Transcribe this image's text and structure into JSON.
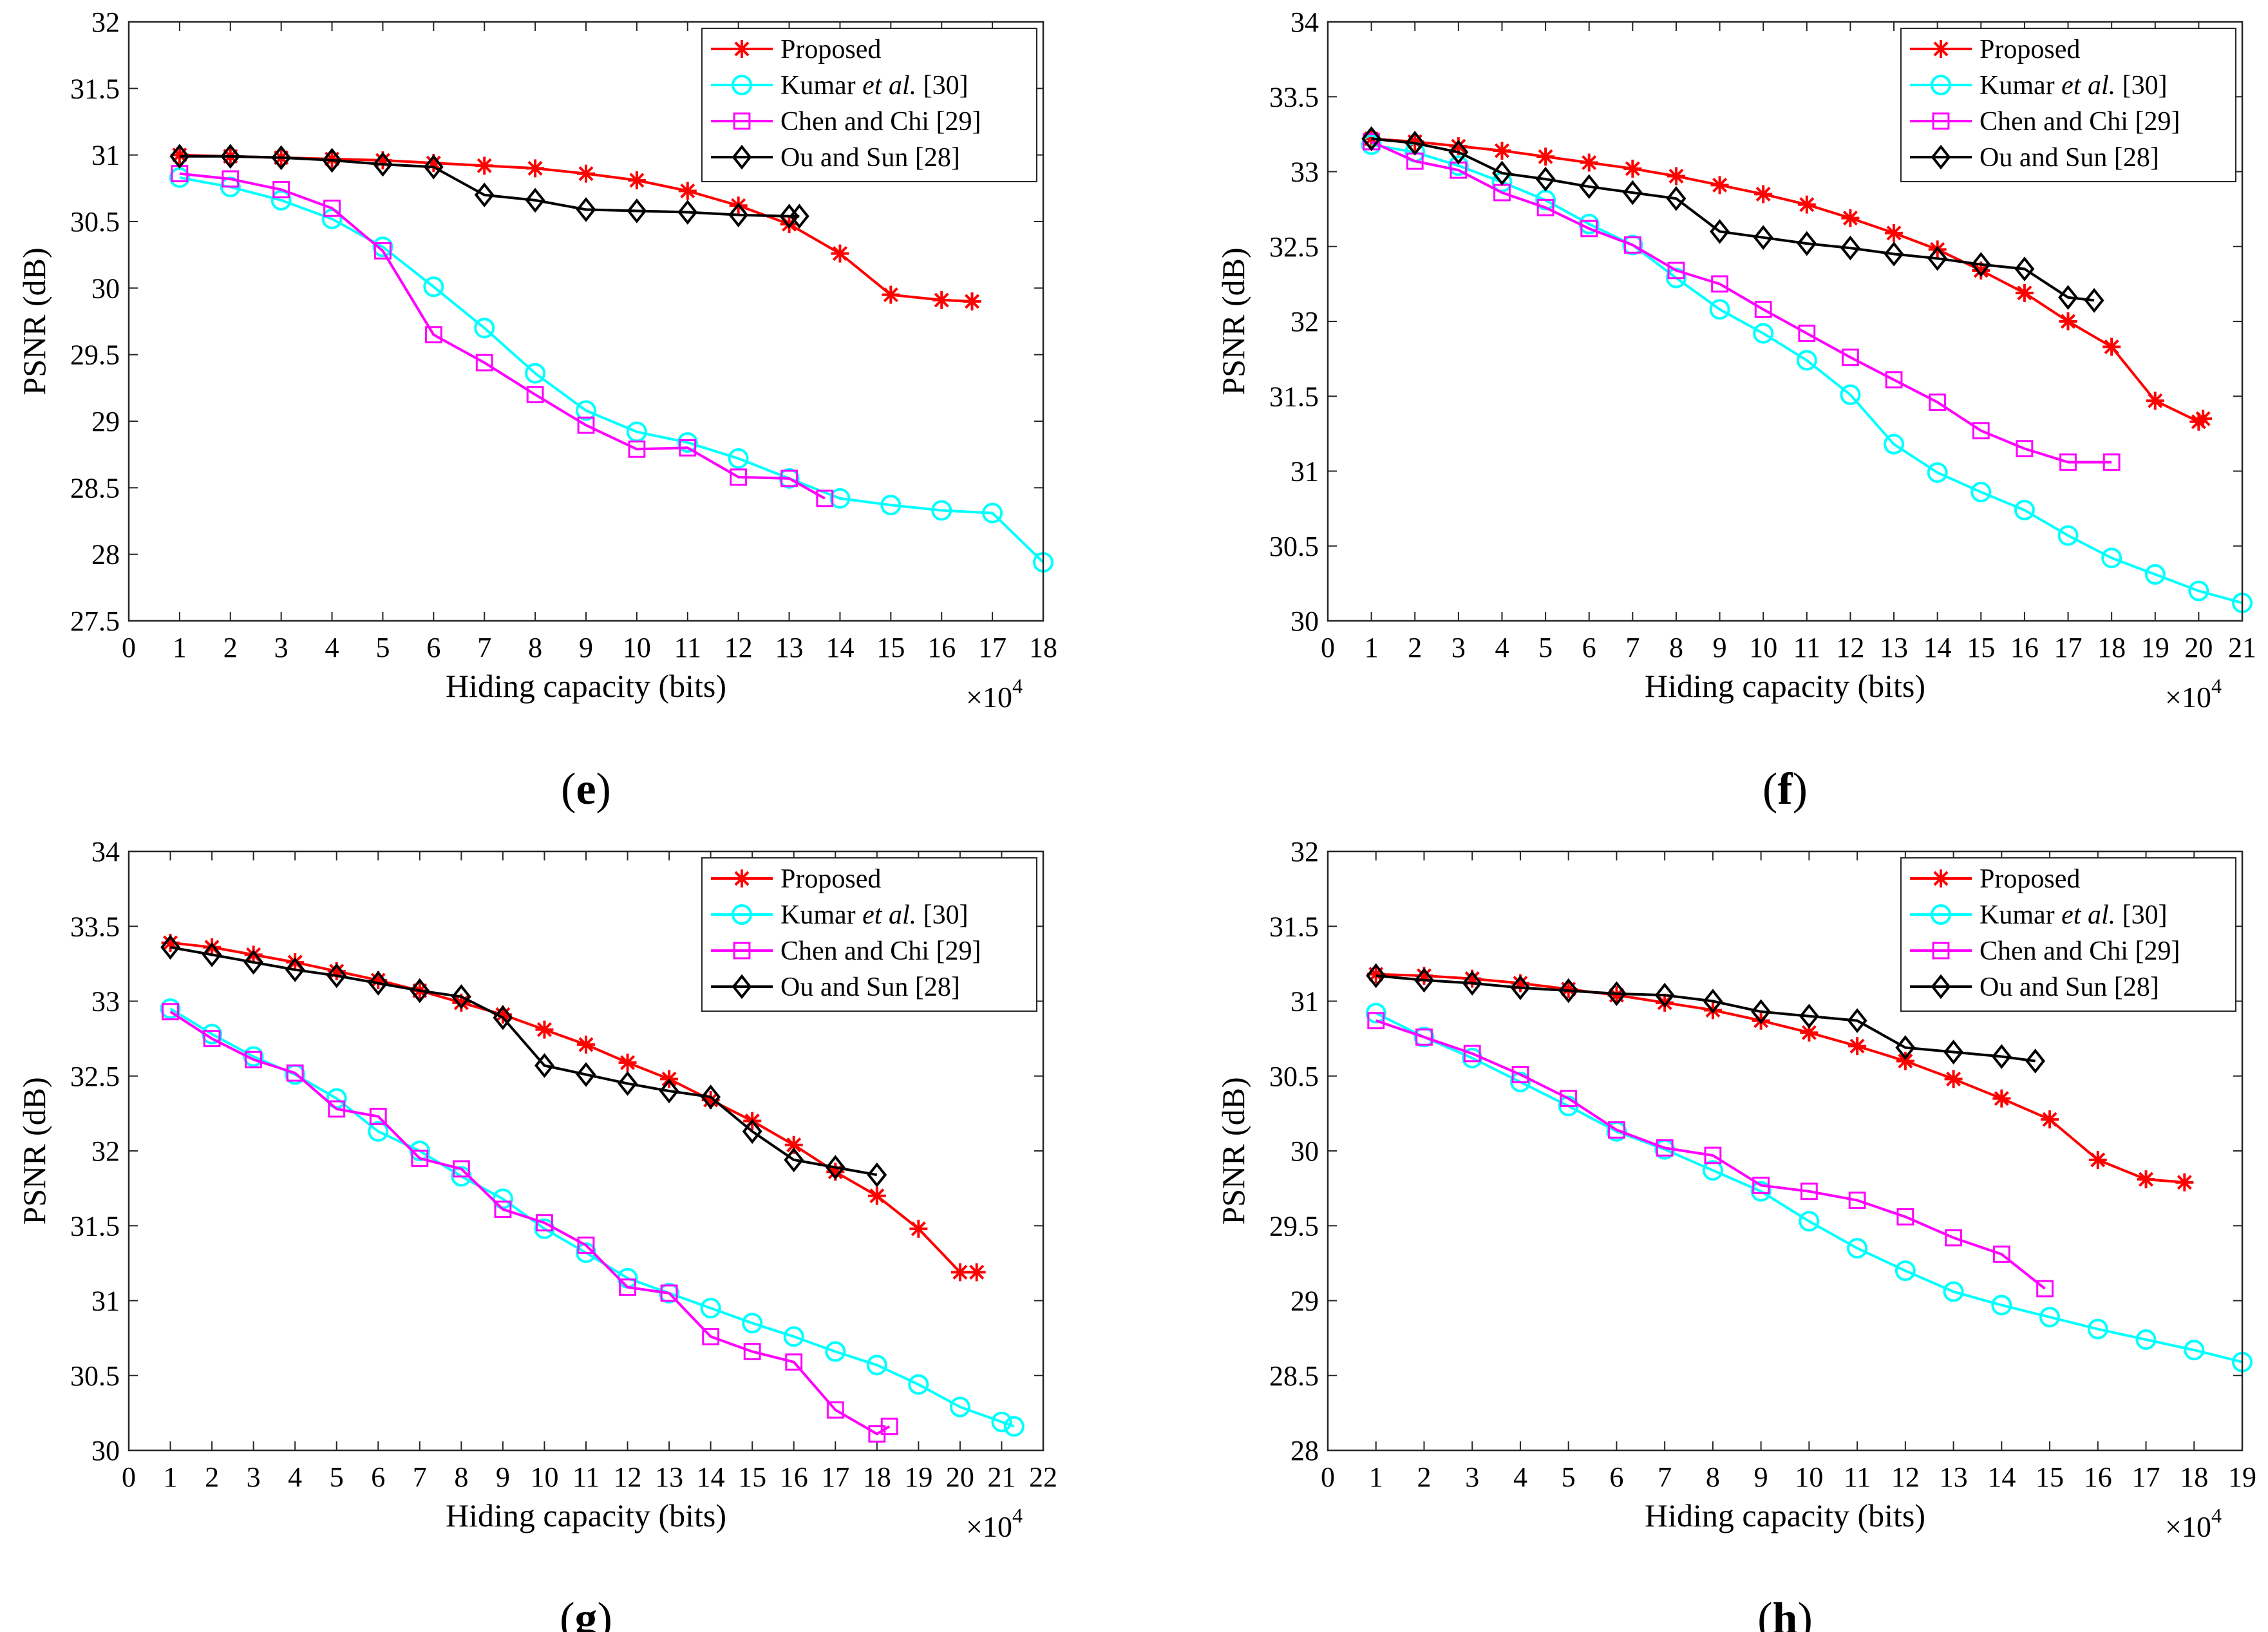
{
  "colors": {
    "proposed": "#ff0000",
    "kumar": "#00ffff",
    "chen": "#ff00ff",
    "ou": "#000000"
  },
  "chart_data": [
    {
      "type": "line",
      "panel_label": "e",
      "xlabel": "Hiding capacity (bits)",
      "ylabel": "PSNR (dB)",
      "multiplier": {
        "base": "×10",
        "exp": "4"
      },
      "xlim": [
        0,
        18
      ],
      "ylim": [
        27.5,
        32
      ],
      "xticks": [
        0,
        1,
        2,
        3,
        4,
        5,
        6,
        7,
        8,
        9,
        10,
        11,
        12,
        13,
        14,
        15,
        16,
        17,
        18
      ],
      "yticks": [
        27.5,
        28,
        28.5,
        29,
        29.5,
        30,
        30.5,
        31,
        31.5,
        32
      ],
      "legend": {
        "position": "top-right",
        "entries": [
          {
            "series": 0,
            "parts": [
              {
                "t": "Proposed"
              }
            ]
          },
          {
            "series": 1,
            "parts": [
              {
                "t": "Kumar "
              },
              {
                "t": "et al.",
                "i": true
              },
              {
                "t": " [30]"
              }
            ]
          },
          {
            "series": 2,
            "parts": [
              {
                "t": "Chen and Chi [29]"
              }
            ]
          },
          {
            "series": 3,
            "parts": [
              {
                "t": "Ou and Sun [28]"
              }
            ]
          }
        ]
      },
      "series": [
        {
          "name": "Proposed",
          "marker": "star",
          "color": "#ff0000",
          "x": [
            1,
            2,
            3,
            4,
            5,
            6,
            7,
            8,
            9,
            10,
            11,
            12,
            13,
            14,
            15,
            16,
            16.6
          ],
          "y": [
            31.0,
            30.99,
            30.98,
            30.97,
            30.96,
            30.94,
            30.92,
            30.9,
            30.86,
            30.81,
            30.73,
            30.62,
            30.48,
            30.26,
            29.95,
            29.91,
            29.9
          ]
        },
        {
          "name": "Kumar et al. [30]",
          "marker": "circle",
          "color": "#00ffff",
          "x": [
            1,
            2,
            3,
            4,
            5,
            6,
            7,
            8,
            9,
            10,
            11,
            12,
            13,
            14,
            15,
            16,
            17,
            18
          ],
          "y": [
            30.83,
            30.76,
            30.66,
            30.52,
            30.31,
            30.01,
            29.7,
            29.36,
            29.08,
            28.92,
            28.84,
            28.72,
            28.57,
            28.42,
            28.37,
            28.33,
            28.31,
            27.94
          ]
        },
        {
          "name": "Chen and Chi [29]",
          "marker": "square",
          "color": "#ff00ff",
          "x": [
            1,
            2,
            3,
            4,
            5,
            6,
            7,
            8,
            9,
            10,
            11,
            12,
            13,
            13.7
          ],
          "y": [
            30.86,
            30.82,
            30.74,
            30.6,
            30.28,
            29.65,
            29.44,
            29.2,
            28.97,
            28.79,
            28.8,
            28.58,
            28.57,
            28.42
          ]
        },
        {
          "name": "Ou and Sun [28]",
          "marker": "diamond",
          "color": "#000000",
          "x": [
            1,
            2,
            3,
            4,
            5,
            6,
            7,
            8,
            9,
            10,
            11,
            12,
            13,
            13.2
          ],
          "y": [
            30.99,
            30.99,
            30.98,
            30.96,
            30.93,
            30.91,
            30.7,
            30.66,
            30.59,
            30.58,
            30.57,
            30.55,
            30.54,
            30.54
          ]
        }
      ]
    },
    {
      "type": "line",
      "panel_label": "f",
      "xlabel": "Hiding capacity (bits)",
      "ylabel": "PSNR (dB)",
      "multiplier": {
        "base": "×10",
        "exp": "4"
      },
      "xlim": [
        0,
        21
      ],
      "ylim": [
        30,
        34
      ],
      "xticks": [
        0,
        1,
        2,
        3,
        4,
        5,
        6,
        7,
        8,
        9,
        10,
        11,
        12,
        13,
        14,
        15,
        16,
        17,
        18,
        19,
        20,
        21
      ],
      "yticks": [
        30,
        30.5,
        31,
        31.5,
        32,
        32.5,
        33,
        33.5,
        34
      ],
      "legend": {
        "position": "top-right",
        "entries": [
          {
            "series": 0,
            "parts": [
              {
                "t": "Proposed"
              }
            ]
          },
          {
            "series": 1,
            "parts": [
              {
                "t": "Kumar "
              },
              {
                "t": "et al.",
                "i": true
              },
              {
                "t": " [30]"
              }
            ]
          },
          {
            "series": 2,
            "parts": [
              {
                "t": "Chen and Chi [29]"
              }
            ]
          },
          {
            "series": 3,
            "parts": [
              {
                "t": "Ou and Sun [28]"
              }
            ]
          }
        ]
      },
      "series": [
        {
          "name": "Proposed",
          "marker": "star",
          "color": "#ff0000",
          "x": [
            1,
            2,
            3,
            4,
            5,
            6,
            7,
            8,
            9,
            10,
            11,
            12,
            13,
            14,
            15,
            16,
            17,
            18,
            19,
            20,
            20.1
          ],
          "y": [
            33.22,
            33.2,
            33.17,
            33.14,
            33.1,
            33.06,
            33.02,
            32.97,
            32.91,
            32.85,
            32.78,
            32.69,
            32.59,
            32.48,
            32.34,
            32.19,
            32.0,
            31.83,
            31.47,
            31.33,
            31.35
          ]
        },
        {
          "name": "Kumar et al. [30]",
          "marker": "circle",
          "color": "#00ffff",
          "x": [
            1,
            2,
            3,
            4,
            5,
            6,
            7,
            8,
            9,
            10,
            11,
            12,
            13,
            14,
            15,
            16,
            17,
            18,
            19,
            20,
            21
          ],
          "y": [
            33.18,
            33.13,
            33.04,
            32.93,
            32.81,
            32.65,
            32.51,
            32.29,
            32.08,
            31.92,
            31.74,
            31.51,
            31.18,
            30.99,
            30.86,
            30.74,
            30.57,
            30.42,
            30.31,
            30.2,
            30.12
          ]
        },
        {
          "name": "Chen and Chi [29]",
          "marker": "square",
          "color": "#ff00ff",
          "x": [
            1,
            2,
            3,
            4,
            5,
            6,
            7,
            8,
            9,
            10,
            11,
            12,
            13,
            14,
            15,
            16,
            17,
            18
          ],
          "y": [
            33.2,
            33.07,
            33.01,
            32.86,
            32.76,
            32.62,
            32.51,
            32.34,
            32.25,
            32.08,
            31.92,
            31.76,
            31.61,
            31.46,
            31.27,
            31.15,
            31.06,
            31.06
          ]
        },
        {
          "name": "Ou and Sun [28]",
          "marker": "diamond",
          "color": "#000000",
          "x": [
            1,
            2,
            3,
            4,
            5,
            6,
            7,
            8,
            9,
            10,
            11,
            12,
            13,
            14,
            15,
            16,
            17,
            17.6
          ],
          "y": [
            33.22,
            33.19,
            33.13,
            32.99,
            32.95,
            32.9,
            32.86,
            32.82,
            32.6,
            32.56,
            32.52,
            32.49,
            32.45,
            32.42,
            32.38,
            32.35,
            32.16,
            32.14
          ]
        }
      ]
    },
    {
      "type": "line",
      "panel_label": "g",
      "xlabel": "Hiding capacity (bits)",
      "ylabel": "PSNR (dB)",
      "multiplier": {
        "base": "×10",
        "exp": "4"
      },
      "xlim": [
        0,
        22
      ],
      "ylim": [
        30,
        34
      ],
      "xticks": [
        0,
        1,
        2,
        3,
        4,
        5,
        6,
        7,
        8,
        9,
        10,
        11,
        12,
        13,
        14,
        15,
        16,
        17,
        18,
        19,
        20,
        21,
        22
      ],
      "yticks": [
        30,
        30.5,
        31,
        31.5,
        32,
        32.5,
        33,
        33.5,
        34
      ],
      "legend": {
        "position": "top-right",
        "entries": [
          {
            "series": 0,
            "parts": [
              {
                "t": "Proposed"
              }
            ]
          },
          {
            "series": 1,
            "parts": [
              {
                "t": "Kumar "
              },
              {
                "t": "et al.",
                "i": true
              },
              {
                "t": " [30]"
              }
            ]
          },
          {
            "series": 2,
            "parts": [
              {
                "t": "Chen and Chi [29]"
              }
            ]
          },
          {
            "series": 3,
            "parts": [
              {
                "t": "Ou and Sun [28]"
              }
            ]
          }
        ]
      },
      "series": [
        {
          "name": "Proposed",
          "marker": "star",
          "color": "#ff0000",
          "x": [
            1,
            2,
            3,
            4,
            5,
            6,
            7,
            8,
            9,
            10,
            11,
            12,
            13,
            14,
            15,
            16,
            17,
            18,
            19,
            20,
            20.4
          ],
          "y": [
            33.39,
            33.36,
            33.31,
            33.26,
            33.2,
            33.14,
            33.07,
            32.99,
            32.91,
            32.81,
            32.71,
            32.59,
            32.48,
            32.34,
            32.2,
            32.04,
            31.86,
            31.7,
            31.48,
            31.19,
            31.19
          ]
        },
        {
          "name": "Kumar et al. [30]",
          "marker": "circle",
          "color": "#00ffff",
          "x": [
            1,
            2,
            3,
            4,
            5,
            6,
            7,
            8,
            9,
            10,
            11,
            12,
            13,
            14,
            15,
            16,
            17,
            18,
            19,
            20,
            21,
            21.3
          ],
          "y": [
            32.95,
            32.78,
            32.63,
            32.51,
            32.35,
            32.13,
            32.0,
            31.83,
            31.68,
            31.48,
            31.32,
            31.15,
            31.05,
            30.95,
            30.85,
            30.76,
            30.66,
            30.57,
            30.44,
            30.29,
            30.19,
            30.16
          ]
        },
        {
          "name": "Chen and Chi [29]",
          "marker": "square",
          "color": "#ff00ff",
          "x": [
            1,
            2,
            3,
            4,
            5,
            6,
            7,
            8,
            9,
            10,
            11,
            12,
            13,
            14,
            15,
            16,
            17,
            18,
            18.3
          ],
          "y": [
            32.93,
            32.75,
            32.61,
            32.52,
            32.28,
            32.23,
            31.95,
            31.88,
            31.61,
            31.52,
            31.37,
            31.09,
            31.05,
            30.76,
            30.66,
            30.59,
            30.27,
            30.11,
            30.16
          ]
        },
        {
          "name": "Ou and Sun [28]",
          "marker": "diamond",
          "color": "#000000",
          "x": [
            1,
            2,
            3,
            4,
            5,
            6,
            7,
            8,
            9,
            10,
            11,
            12,
            13,
            14,
            15,
            16,
            17,
            18
          ],
          "y": [
            33.36,
            33.31,
            33.26,
            33.21,
            33.17,
            33.12,
            33.07,
            33.03,
            32.89,
            32.57,
            32.51,
            32.45,
            32.4,
            32.36,
            32.13,
            31.94,
            31.89,
            31.84
          ]
        }
      ]
    },
    {
      "type": "line",
      "panel_label": "h",
      "xlabel": "Hiding capacity (bits)",
      "ylabel": "PSNR (dB)",
      "multiplier": {
        "base": "×10",
        "exp": "4"
      },
      "xlim": [
        0,
        19
      ],
      "ylim": [
        28,
        32
      ],
      "xticks": [
        0,
        1,
        2,
        3,
        4,
        5,
        6,
        7,
        8,
        9,
        10,
        11,
        12,
        13,
        14,
        15,
        16,
        17,
        18,
        19
      ],
      "yticks": [
        28,
        28.5,
        29,
        29.5,
        30,
        30.5,
        31,
        31.5,
        32
      ],
      "legend": {
        "position": "top-right",
        "entries": [
          {
            "series": 0,
            "parts": [
              {
                "t": "Proposed"
              }
            ]
          },
          {
            "series": 1,
            "parts": [
              {
                "t": "Kumar "
              },
              {
                "t": "et al.",
                "i": true
              },
              {
                "t": " [30]"
              }
            ]
          },
          {
            "series": 2,
            "parts": [
              {
                "t": "Chen and Chi [29]"
              }
            ]
          },
          {
            "series": 3,
            "parts": [
              {
                "t": "Ou and Sun [28]"
              }
            ]
          }
        ]
      },
      "series": [
        {
          "name": "Proposed",
          "marker": "star",
          "color": "#ff0000",
          "x": [
            1,
            2,
            3,
            4,
            5,
            6,
            7,
            8,
            9,
            10,
            11,
            12,
            13,
            14,
            15,
            16,
            17,
            17.8
          ],
          "y": [
            31.18,
            31.17,
            31.15,
            31.12,
            31.08,
            31.04,
            30.99,
            30.94,
            30.87,
            30.79,
            30.7,
            30.6,
            30.48,
            30.35,
            30.21,
            29.94,
            29.81,
            29.79
          ]
        },
        {
          "name": "Kumar et al. [30]",
          "marker": "circle",
          "color": "#00ffff",
          "x": [
            1,
            2,
            3,
            4,
            5,
            6,
            7,
            8,
            9,
            10,
            11,
            12,
            13,
            14,
            15,
            16,
            17,
            18,
            19
          ],
          "y": [
            30.92,
            30.76,
            30.62,
            30.46,
            30.3,
            30.13,
            30.01,
            29.87,
            29.73,
            29.53,
            29.35,
            29.2,
            29.06,
            28.97,
            28.89,
            28.81,
            28.74,
            28.67,
            28.59
          ]
        },
        {
          "name": "Chen and Chi [29]",
          "marker": "square",
          "color": "#ff00ff",
          "x": [
            1,
            2,
            3,
            4,
            5,
            6,
            7,
            8,
            9,
            10,
            11,
            12,
            13,
            14,
            14.9
          ],
          "y": [
            30.87,
            30.76,
            30.65,
            30.51,
            30.35,
            30.14,
            30.02,
            29.97,
            29.77,
            29.73,
            29.67,
            29.56,
            29.42,
            29.31,
            29.08
          ]
        },
        {
          "name": "Ou and Sun [28]",
          "marker": "diamond",
          "color": "#000000",
          "x": [
            1,
            2,
            3,
            4,
            5,
            6,
            7,
            8,
            9,
            10,
            11,
            12,
            13,
            14,
            14.7
          ],
          "y": [
            31.17,
            31.14,
            31.12,
            31.09,
            31.07,
            31.05,
            31.04,
            31.0,
            30.93,
            30.9,
            30.87,
            30.69,
            30.66,
            30.63,
            30.6
          ]
        }
      ]
    }
  ]
}
